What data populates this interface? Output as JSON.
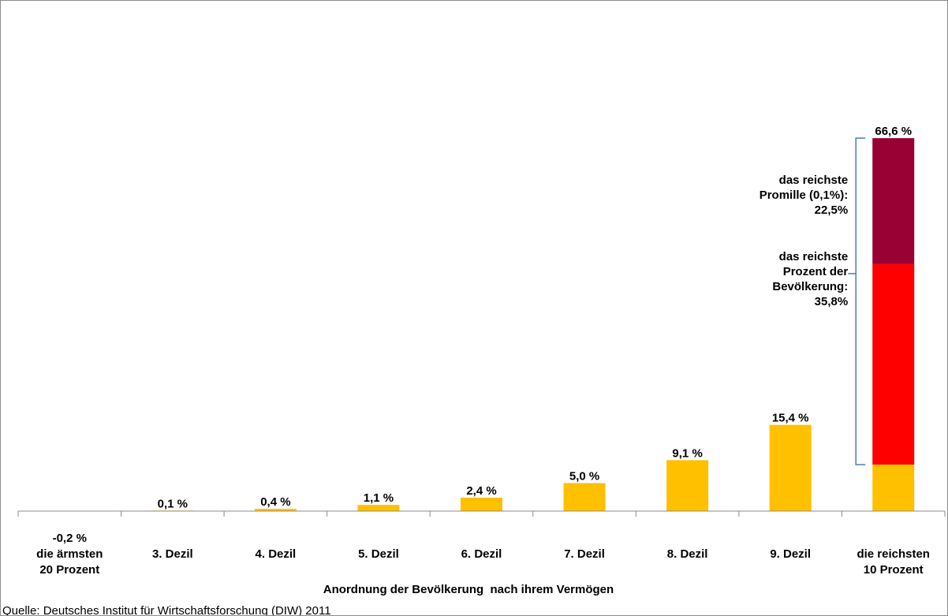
{
  "chart_data": {
    "type": "bar",
    "title": "",
    "xlabel": "Anordnung der Bevölkerung  nach ihrem Vermögen",
    "ylabel": "",
    "ylim": [
      -0.2,
      66.6
    ],
    "categories": [
      [
        "die ärmsten",
        "20 Prozent"
      ],
      [
        "3. Dezil"
      ],
      [
        "4. Dezil"
      ],
      [
        "5. Dezil"
      ],
      [
        "6. Dezil"
      ],
      [
        "7. Dezil"
      ],
      [
        "8. Dezil"
      ],
      [
        "9. Dezil"
      ],
      [
        "die reichsten",
        "10 Prozent"
      ]
    ],
    "values": [
      -0.2,
      0.1,
      0.4,
      1.1,
      2.4,
      5.0,
      9.1,
      15.4,
      66.6
    ],
    "value_labels": [
      "-0,2 %",
      "0,1 %",
      "0,4 %",
      "1,1 %",
      "2,4 %",
      "5,0 %",
      "9,1 %",
      "15,4 %",
      "66,6 %"
    ],
    "top_decile_breakdown": [
      {
        "value": 8.3,
        "color": "#FFC000"
      },
      {
        "value": 35.8,
        "color": "#FF0000"
      },
      {
        "value": 22.5,
        "color": "#990033"
      }
    ],
    "annotations": [
      {
        "lines": [
          "das reichste",
          "Promille (0,1%):",
          "22,5%"
        ]
      },
      {
        "lines": [
          "das reichste",
          "Prozent der",
          "Bevölkerung:",
          "35,8%"
        ]
      }
    ],
    "grid": false,
    "legend": "none",
    "bar_color": "#FFC000",
    "source": "Quelle: Deutsches Institut für Wirtschaftsforschung (DIW) 2011"
  }
}
